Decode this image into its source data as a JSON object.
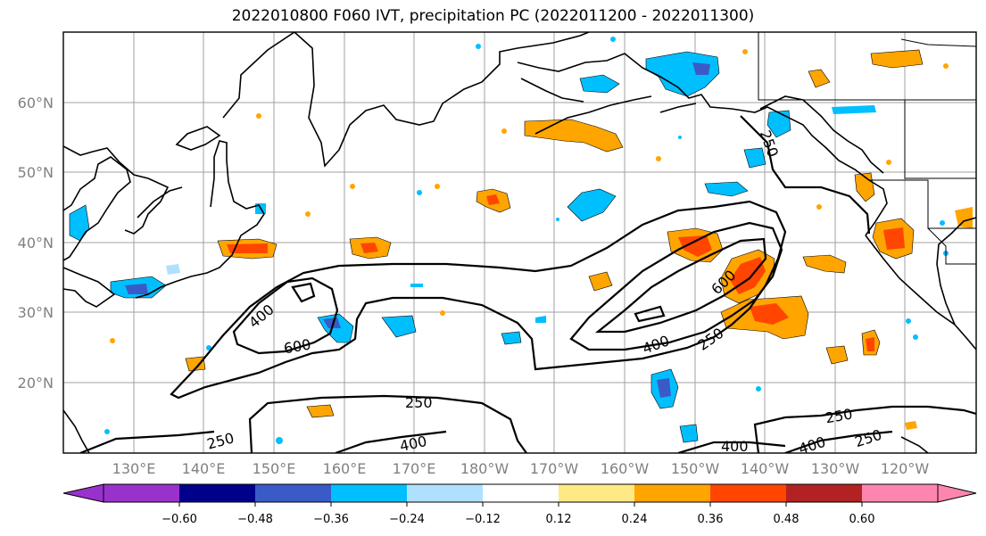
{
  "title": "2022010800 F060 IVT, precipitation PC (2022011200 - 2022011300)",
  "lat_labels": [
    "60°N",
    "50°N",
    "40°N",
    "30°N",
    "20°N"
  ],
  "lon_labels": [
    "130°E",
    "140°E",
    "150°E",
    "160°E",
    "170°E",
    "180°W",
    "170°W",
    "160°W",
    "150°W",
    "140°W",
    "130°W",
    "120°W"
  ],
  "ivt_contour_labels": [
    "250",
    "250",
    "250",
    "250",
    "250",
    "400",
    "400",
    "400",
    "400",
    "400",
    "600",
    "600"
  ],
  "colorbar": {
    "colors": [
      "#9932cc",
      "#00008b",
      "#3a5bc7",
      "#00bfff",
      "#b0e0ff",
      "#ffffff",
      "#ffe985",
      "#ffa500",
      "#ff4500",
      "#b22222",
      "#ff85b0"
    ],
    "ticks": [
      "−0.60",
      "−0.48",
      "−0.36",
      "−0.24",
      "−0.12",
      "0.12",
      "0.24",
      "0.36",
      "0.48",
      "0.60"
    ]
  }
}
